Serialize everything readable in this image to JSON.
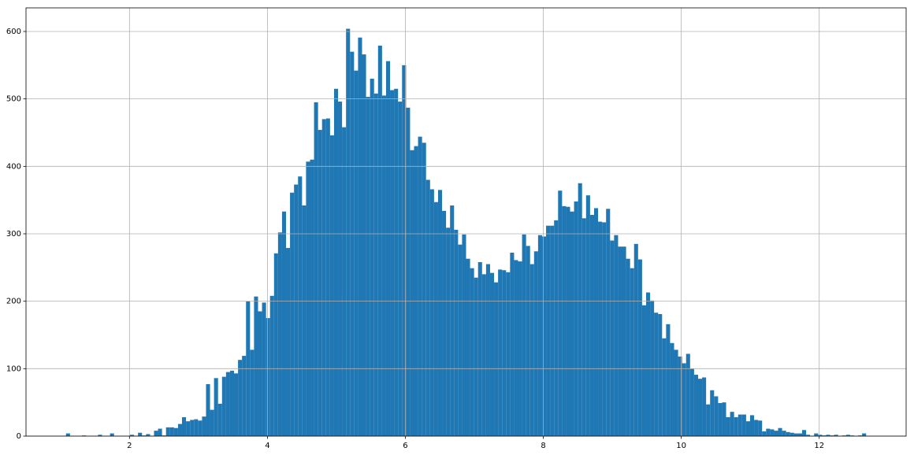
{
  "chart_data": {
    "type": "histogram",
    "color": "#1f77b4",
    "grid": true,
    "bins": [
      1.08,
      1.138,
      1.196,
      1.254,
      1.312,
      1.37,
      1.428,
      1.486,
      1.544,
      1.602,
      1.66,
      1.718,
      1.776,
      1.834,
      1.892,
      1.95,
      2.008,
      2.066,
      2.124,
      2.182,
      2.24,
      2.298,
      2.356,
      2.414,
      2.472,
      2.53,
      2.588,
      2.646,
      2.704,
      2.762,
      2.82,
      2.878,
      2.936,
      2.994,
      3.052,
      3.11,
      3.168,
      3.226,
      3.284,
      3.342,
      3.4,
      3.458,
      3.516,
      3.574,
      3.632,
      3.69,
      3.748,
      3.806,
      3.864,
      3.922,
      3.98,
      4.038,
      4.096,
      4.154,
      4.212,
      4.27,
      4.328,
      4.386,
      4.444,
      4.502,
      4.56,
      4.618,
      4.676,
      4.734,
      4.792,
      4.85,
      4.908,
      4.966,
      5.024,
      5.082,
      5.14,
      5.198,
      5.256,
      5.314,
      5.372,
      5.43,
      5.488,
      5.546,
      5.604,
      5.662,
      5.72,
      5.778,
      5.836,
      5.894,
      5.952,
      6.01,
      6.068,
      6.126,
      6.184,
      6.242,
      6.3,
      6.358,
      6.416,
      6.474,
      6.532,
      6.59,
      6.648,
      6.706,
      6.764,
      6.822,
      6.88,
      6.938,
      6.996,
      7.054,
      7.112,
      7.17,
      7.228,
      7.286,
      7.344,
      7.402,
      7.46,
      7.518,
      7.576,
      7.634,
      7.692,
      7.75,
      7.808,
      7.866,
      7.924,
      7.982,
      8.04,
      8.098,
      8.156,
      8.214,
      8.272,
      8.33,
      8.388,
      8.446,
      8.504,
      8.562,
      8.62,
      8.678,
      8.736,
      8.794,
      8.852,
      8.91,
      8.968,
      9.026,
      9.084,
      9.142,
      9.2,
      9.258,
      9.316,
      9.374,
      9.432,
      9.49,
      9.548,
      9.606,
      9.664,
      9.722,
      9.78,
      9.838,
      9.896,
      9.954,
      10.012,
      10.07,
      10.128,
      10.186,
      10.244,
      10.302,
      10.36,
      10.418,
      10.476,
      10.534,
      10.592,
      10.65,
      10.708,
      10.766,
      10.824,
      10.882,
      10.94,
      10.998,
      11.056,
      11.114,
      11.172,
      11.23,
      11.288,
      11.346,
      11.404,
      11.462,
      11.52,
      11.578,
      11.636,
      11.694,
      11.752,
      11.81,
      11.868,
      11.926,
      11.984,
      12.042,
      12.1,
      12.158,
      12.216,
      12.274,
      12.332,
      12.39,
      12.448,
      12.506,
      12.564,
      12.622,
      12.68
    ],
    "values": [
      4,
      0,
      0,
      0,
      1,
      0,
      0,
      0,
      2,
      0,
      0,
      4,
      0,
      0,
      0,
      0,
      2,
      0,
      5,
      1,
      3,
      0,
      8,
      11,
      1,
      13,
      13,
      12,
      18,
      28,
      22,
      24,
      25,
      23,
      29,
      77,
      39,
      86,
      48,
      88,
      95,
      97,
      93,
      113,
      119,
      200,
      128,
      207,
      185,
      198,
      175,
      208,
      271,
      302,
      333,
      279,
      361,
      373,
      385,
      342,
      407,
      410,
      495,
      454,
      470,
      471,
      446,
      515,
      496,
      458,
      604,
      570,
      542,
      591,
      566,
      503,
      530,
      508,
      579,
      505,
      556,
      513,
      515,
      496,
      550,
      487,
      424,
      430,
      444,
      435,
      380,
      366,
      347,
      365,
      334,
      309,
      342,
      306,
      284,
      299,
      263,
      249,
      235,
      258,
      240,
      255,
      242,
      228,
      247,
      246,
      243,
      272,
      261,
      259,
      299,
      282,
      255,
      274,
      298,
      296,
      312,
      312,
      320,
      364,
      341,
      340,
      333,
      348,
      375,
      323,
      357,
      328,
      338,
      318,
      317,
      337,
      290,
      298,
      281,
      281,
      263,
      249,
      285,
      262,
      194,
      213,
      201,
      183,
      181,
      145,
      166,
      138,
      128,
      118,
      108,
      122,
      100,
      91,
      85,
      87,
      47,
      68,
      59,
      49,
      50,
      28,
      36,
      28,
      32,
      32,
      22,
      31,
      24,
      23,
      7,
      11,
      10,
      8,
      12,
      8,
      6,
      5,
      4,
      4,
      9,
      2,
      0,
      4,
      2,
      1,
      2,
      1,
      2,
      0,
      1,
      2,
      1,
      0,
      1,
      4
    ],
    "xlim": [
      0.5,
      13.26
    ],
    "ylim": [
      0,
      635
    ],
    "xticks": [
      2,
      4,
      6,
      8,
      10,
      12
    ],
    "yticks": [
      0,
      100,
      200,
      300,
      400,
      500,
      600
    ]
  }
}
